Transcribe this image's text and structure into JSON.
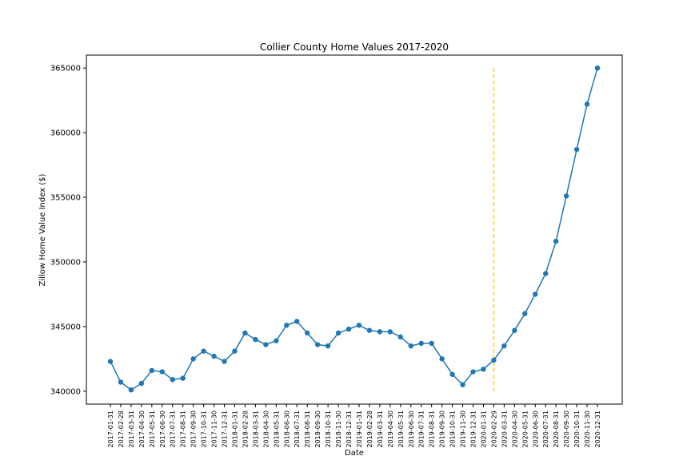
{
  "chart_data": {
    "type": "line",
    "title": "Collier County Home Values 2017-2020",
    "xlabel": "Date",
    "ylabel": "Zillow Home Value Index ($)",
    "ylim": [
      339000,
      366000
    ],
    "yticks": [
      340000,
      345000,
      350000,
      355000,
      360000,
      365000
    ],
    "grid": false,
    "x": [
      "2017-01-31",
      "2017-02-28",
      "2017-03-31",
      "2017-04-30",
      "2017-05-31",
      "2017-06-30",
      "2017-07-31",
      "2017-08-31",
      "2017-09-30",
      "2017-10-31",
      "2017-11-30",
      "2017-12-31",
      "2018-01-31",
      "2018-02-28",
      "2018-03-31",
      "2018-04-30",
      "2018-05-31",
      "2018-06-30",
      "2018-07-31",
      "2018-08-31",
      "2018-09-30",
      "2018-10-31",
      "2018-11-30",
      "2018-12-31",
      "2019-01-31",
      "2019-02-28",
      "2019-03-31",
      "2019-04-30",
      "2019-05-31",
      "2019-06-30",
      "2019-07-31",
      "2019-08-31",
      "2019-09-30",
      "2019-10-31",
      "2019-11-30",
      "2019-12-31",
      "2020-01-31",
      "2020-02-29",
      "2020-03-31",
      "2020-04-30",
      "2020-05-31",
      "2020-06-30",
      "2020-07-31",
      "2020-08-31",
      "2020-09-30",
      "2020-10-31",
      "2020-11-30",
      "2020-12-31"
    ],
    "series": [
      {
        "color": "#1f77b4",
        "values": [
          342300,
          340700,
          340100,
          340600,
          341600,
          341500,
          340900,
          341000,
          342500,
          343100,
          342700,
          342300,
          343100,
          344500,
          344000,
          343600,
          343900,
          345100,
          345400,
          344500,
          343600,
          343500,
          344500,
          344800,
          345100,
          344700,
          344600,
          344600,
          344200,
          343500,
          343700,
          343700,
          342500,
          341300,
          340500,
          341500,
          341700,
          342400,
          343500,
          344700,
          346000,
          347500,
          349100,
          351600,
          355100,
          358700,
          362200,
          365000
        ]
      }
    ],
    "vline": {
      "x": "2020-02-29",
      "y_range": [
        340000,
        365000
      ],
      "color": "#ffd700",
      "style": "dashed"
    }
  }
}
